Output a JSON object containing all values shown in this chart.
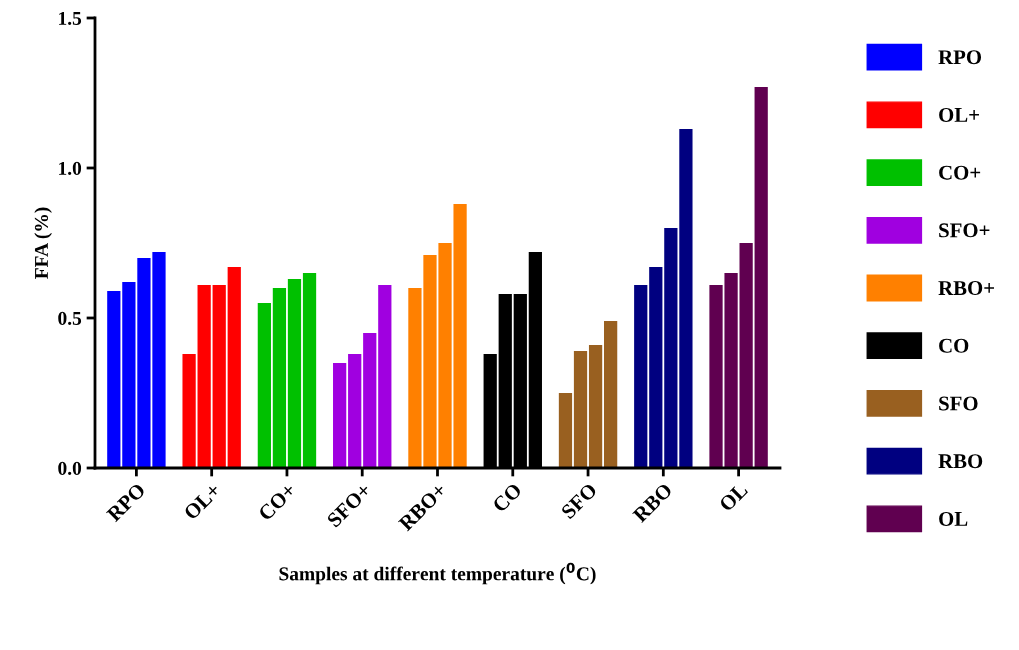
{
  "chart_data": {
    "type": "bar",
    "xlabel": "Samples at different temperature ($^{0}$C)",
    "ylabel": "FFA (%)",
    "categories": [
      "RPO",
      "OL+",
      "CO+",
      "SFO+",
      "RBO+",
      "CO",
      "SFO",
      "RBO",
      "OL"
    ],
    "series": [
      {
        "name": "RPO",
        "color": "#0000ff",
        "x": [
          "RPO",
          "RPO",
          "RPO",
          "RPO"
        ],
        "values": [
          0.59,
          0.62,
          0.7,
          0.72
        ]
      },
      {
        "name": "OL+",
        "color": "#ff0000",
        "x": [
          "OL+",
          "OL+",
          "OL+",
          "OL+"
        ],
        "values": [
          0.38,
          0.61,
          0.61,
          0.67
        ]
      },
      {
        "name": "CO+",
        "color": "#00c000",
        "x": [
          "CO+",
          "CO+",
          "CO+",
          "CO+"
        ],
        "values": [
          0.55,
          0.6,
          0.63,
          0.65
        ]
      },
      {
        "name": "SFO+",
        "color": "#a000e0",
        "x": [
          "SFO+",
          "SFO+",
          "SFO+",
          "SFO+"
        ],
        "values": [
          0.35,
          0.38,
          0.45,
          0.61
        ]
      },
      {
        "name": "RBO+",
        "color": "#ff8000",
        "x": [
          "RBO+",
          "RBO+",
          "RBO+",
          "RBO+"
        ],
        "values": [
          0.6,
          0.71,
          0.75,
          0.88
        ]
      },
      {
        "name": "CO",
        "color": "#000000",
        "x": [
          "CO",
          "CO",
          "CO",
          "CO"
        ],
        "values": [
          0.38,
          0.58,
          0.58,
          0.72
        ]
      },
      {
        "name": "SFO",
        "color": "#996020",
        "x": [
          "SFO",
          "SFO",
          "SFO",
          "SFO"
        ],
        "values": [
          0.25,
          0.39,
          0.41,
          0.49
        ]
      },
      {
        "name": "RBO",
        "color": "#000080",
        "x": [
          "RBO",
          "RBO",
          "RBO",
          "RBO"
        ],
        "values": [
          0.61,
          0.67,
          0.8,
          1.13
        ]
      },
      {
        "name": "OL",
        "color": "#600050",
        "x": [
          "OL",
          "OL",
          "OL",
          "OL"
        ],
        "values": [
          0.61,
          0.65,
          0.75,
          1.27
        ]
      }
    ],
    "ylim": [
      0,
      1.5
    ],
    "yticks": [
      {
        "value": 0,
        "label": "0.0"
      },
      {
        "value": 0.5,
        "label": "0.5"
      },
      {
        "value": 1.0,
        "label": "1.0"
      },
      {
        "value": 1.5,
        "label": "1.5"
      }
    ],
    "grid": false,
    "legend": "right"
  }
}
